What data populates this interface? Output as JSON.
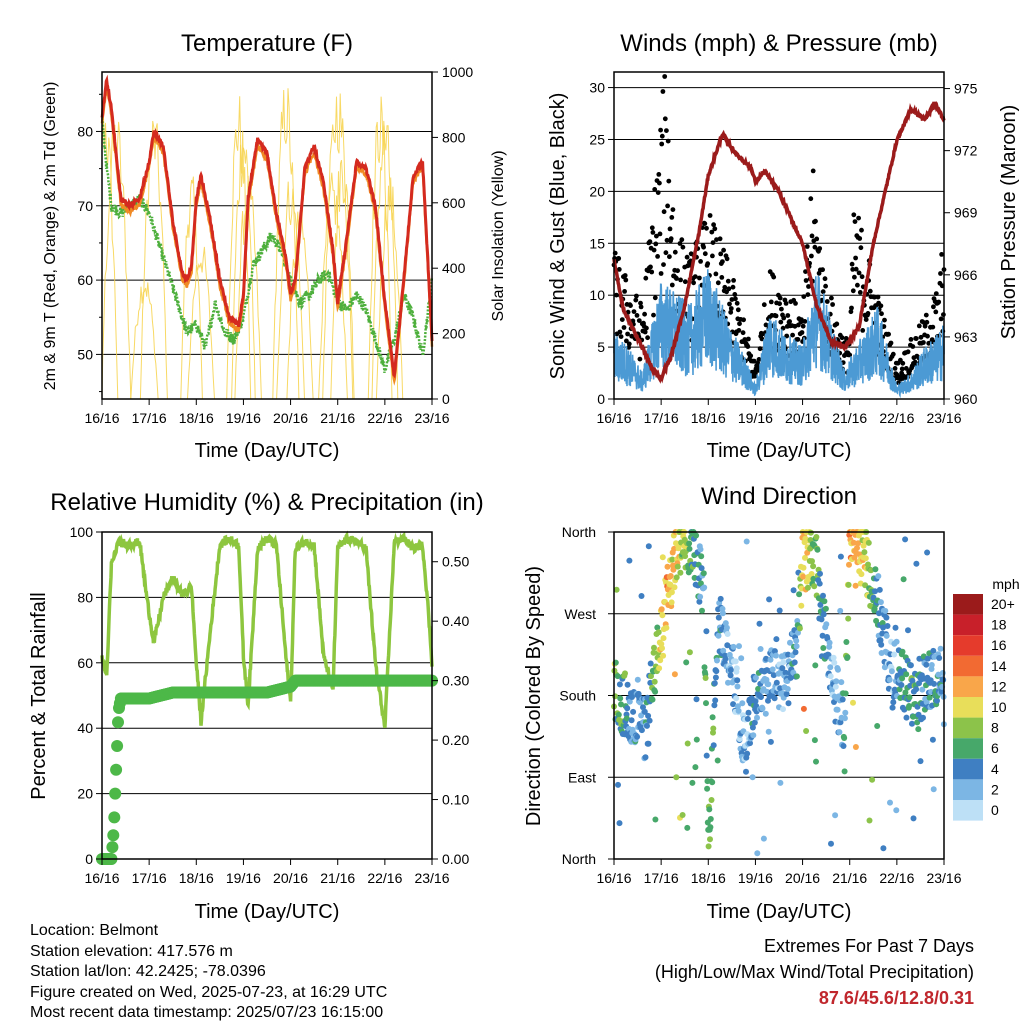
{
  "info": {
    "location": "Location: Belmont",
    "elevation": "Station elevation: 417.576 m",
    "latlon": "Station lat/lon: 42.2425; -78.0396",
    "created": "Figure created on Wed, 2025-07-23, at 16:29 UTC",
    "recent": "Most recent data timestamp: 2025/07/23 16:15:00"
  },
  "extremes": {
    "title": "Extremes For Past 7 Days",
    "subtitle": "(High/Low/Max Wind/Total Precipitation)",
    "values": "87.6/45.6/12.8/0.31"
  },
  "colors": {
    "temp_red": "#d42a1f",
    "temp_orange": "#f08a24",
    "dewpoint_green": "#4daf3c",
    "solar_yellow": "#f7d24a",
    "wind_blue": "#4c9ad4",
    "gust_black": "#000000",
    "pressure_maroon": "#9b1b1b",
    "rh_lightgreen": "#8dc63f",
    "rain_green": "#4db848"
  },
  "chart_data": [
    {
      "type": "line",
      "title": "Temperature (F)",
      "xlabel": "Time (Day/UTC)",
      "ylabel": "2m & 9m T (Red, Orange) & 2m Td (Green)",
      "y2label": "Solar Insolation (Yellow)",
      "x_ticks": [
        "16/16",
        "17/16",
        "18/16",
        "19/16",
        "20/16",
        "21/16",
        "22/16",
        "23/16"
      ],
      "ylim": [
        44,
        88
      ],
      "y_ticks": [
        "50",
        "60",
        "70",
        "80"
      ],
      "y2lim": [
        0,
        1000
      ],
      "y2_ticks": [
        "0",
        "200",
        "400",
        "600",
        "800",
        "1000"
      ],
      "grid": true,
      "series": [
        {
          "name": "2m T",
          "color": "red",
          "x": [
            0,
            0.1,
            0.2,
            0.4,
            0.6,
            0.8,
            1.0,
            1.1,
            1.3,
            1.5,
            1.7,
            1.8,
            1.9,
            2.0,
            2.1,
            2.3,
            2.5,
            2.7,
            2.9,
            3.0,
            3.1,
            3.3,
            3.5,
            3.7,
            3.9,
            4.0,
            4.1,
            4.3,
            4.5,
            4.7,
            4.9,
            5.0,
            5.2,
            5.4,
            5.6,
            5.8,
            6.0,
            6.2,
            6.4,
            6.6,
            6.8,
            6.9,
            7.0
          ],
          "values": [
            82,
            87,
            83,
            71,
            70,
            71,
            76,
            80,
            78,
            68,
            61,
            60,
            62,
            71,
            74,
            68,
            60,
            55,
            54,
            58,
            71,
            79,
            77,
            69,
            63,
            58,
            60,
            75,
            78,
            73,
            64,
            57,
            66,
            76,
            75,
            70,
            57,
            47,
            60,
            74,
            76,
            64,
            52
          ]
        },
        {
          "name": "2m Td",
          "color": "green",
          "x": [
            0,
            0.1,
            0.2,
            0.4,
            0.6,
            0.8,
            1.0,
            1.2,
            1.4,
            1.6,
            1.8,
            2.0,
            2.2,
            2.4,
            2.6,
            2.8,
            3.0,
            3.2,
            3.4,
            3.6,
            3.8,
            4.0,
            4.2,
            4.4,
            4.6,
            4.8,
            5.0,
            5.2,
            5.4,
            5.6,
            5.8,
            6.0,
            6.2,
            6.4,
            6.6,
            6.8,
            7.0
          ],
          "values": [
            82,
            75,
            70,
            69,
            70,
            71,
            69,
            65,
            61,
            57,
            53,
            54,
            51,
            57,
            53,
            52,
            55,
            62,
            64,
            66,
            64,
            60,
            57,
            58,
            60,
            61,
            57,
            56,
            58,
            56,
            52,
            48,
            52,
            58,
            55,
            50,
            60
          ]
        },
        {
          "name": "Solar Insolation",
          "color": "yellow",
          "axis": "right",
          "peaks_x": [
            0.05,
            0.3,
            0.9,
            1.1,
            1.9,
            2.1,
            2.9,
            3.0,
            3.1,
            3.9,
            4.0,
            4.2,
            4.9,
            5.0,
            5.1,
            5.9,
            6.0,
            6.1
          ],
          "peak_values": [
            950,
            900,
            400,
            900,
            700,
            500,
            950,
            880,
            700,
            1000,
            700,
            600,
            700,
            1000,
            800,
            950,
            900,
            700
          ]
        }
      ]
    },
    {
      "type": "scatter",
      "title": "Winds (mph) & Pressure (mb)",
      "xlabel": "Time (Day/UTC)",
      "ylabel": "Sonic Wind & Gust (Blue, Black)",
      "y2label": "Station Pressure (Maroon)",
      "x_ticks": [
        "16/16",
        "17/16",
        "18/16",
        "19/16",
        "20/16",
        "21/16",
        "22/16",
        "23/16"
      ],
      "ylim": [
        0,
        31.5
      ],
      "y_ticks": [
        "0",
        "5",
        "10",
        "15",
        "20",
        "25",
        "30"
      ],
      "y2lim": [
        960,
        975.8
      ],
      "y2_ticks": [
        "960",
        "963",
        "966",
        "969",
        "972",
        "975"
      ],
      "grid": true,
      "series": [
        {
          "name": "Station Pressure",
          "color": "maroon",
          "x": [
            0,
            0.1,
            0.2,
            0.4,
            0.6,
            0.8,
            1.0,
            1.2,
            1.5,
            1.8,
            2.0,
            2.3,
            2.6,
            2.9,
            3.0,
            3.2,
            3.5,
            3.8,
            4.0,
            4.3,
            4.6,
            4.9,
            5.2,
            5.5,
            5.8,
            6.0,
            6.3,
            6.6,
            6.8,
            7.0
          ],
          "values": [
            966.7,
            965.5,
            964.3,
            963.4,
            962.5,
            961.5,
            961.0,
            962.0,
            964.5,
            968.0,
            970.8,
            972.8,
            971.8,
            971.2,
            970.5,
            971.0,
            970.0,
            968.5,
            967.5,
            964.5,
            962.8,
            962.5,
            963.5,
            967.5,
            970.5,
            972.5,
            974.0,
            973.5,
            974.3,
            973.5
          ]
        },
        {
          "name": "Sonic Wind",
          "color": "blue",
          "x": [
            0,
            0.3,
            0.6,
            1.0,
            1.3,
            1.6,
            2.0,
            2.4,
            2.8,
            3.0,
            3.3,
            3.6,
            4.0,
            4.3,
            4.6,
            4.9,
            5.0,
            5.3,
            5.6,
            6.0,
            6.3,
            6.6,
            6.9,
            7.0
          ],
          "values": [
            5,
            4,
            2,
            9,
            8,
            7,
            10,
            6,
            3,
            1,
            7,
            5,
            4,
            10,
            6,
            2,
            3,
            5,
            7,
            1,
            2,
            4,
            5,
            6
          ]
        },
        {
          "name": "Gust",
          "color": "black",
          "x": [
            0,
            0.3,
            0.6,
            1.0,
            1.1,
            1.3,
            1.6,
            2.0,
            2.4,
            2.8,
            3.0,
            3.3,
            3.6,
            4.0,
            4.2,
            4.5,
            4.9,
            5.0,
            5.1,
            5.3,
            5.6,
            6.0,
            6.3,
            6.6,
            6.9,
            7.0
          ],
          "values": [
            13,
            10,
            8,
            24,
            29,
            15,
            12,
            16,
            12,
            6,
            3,
            11,
            10,
            7,
            20,
            10,
            5,
            6,
            17,
            14,
            9,
            3,
            5,
            7,
            10,
            15
          ]
        }
      ]
    },
    {
      "type": "line",
      "title": "Relative Humidity (%) & Precipitation (in)",
      "xlabel": "Time (Day/UTC)",
      "ylabel": "Percent & Total Rainfall",
      "x_ticks": [
        "16/16",
        "17/16",
        "18/16",
        "19/16",
        "20/16",
        "21/16",
        "22/16",
        "23/16"
      ],
      "ylim": [
        0,
        100
      ],
      "y_ticks": [
        "0",
        "20",
        "40",
        "60",
        "80",
        "100"
      ],
      "y2lim": [
        0,
        0.55
      ],
      "y2_ticks": [
        "0.00",
        "0.10",
        "0.20",
        "0.30",
        "0.40",
        "0.50"
      ],
      "grid": true,
      "series": [
        {
          "name": "Relative Humidity",
          "color": "lightgreen",
          "x": [
            0,
            0.1,
            0.2,
            0.35,
            0.5,
            0.8,
            0.95,
            1.1,
            1.3,
            1.5,
            1.7,
            1.9,
            2.0,
            2.1,
            2.3,
            2.5,
            2.7,
            2.9,
            3.0,
            3.1,
            3.3,
            3.5,
            3.7,
            3.9,
            4.0,
            4.1,
            4.3,
            4.5,
            4.7,
            4.9,
            5.0,
            5.2,
            5.4,
            5.6,
            5.8,
            6.0,
            6.2,
            6.4,
            6.6,
            6.8,
            6.9,
            7.0
          ],
          "values": [
            62,
            56,
            90,
            97,
            96,
            97,
            80,
            66,
            80,
            86,
            81,
            83,
            60,
            42,
            70,
            96,
            98,
            96,
            62,
            47,
            95,
            98,
            96,
            62,
            48,
            95,
            97,
            96,
            62,
            52,
            95,
            98,
            97,
            95,
            60,
            40,
            97,
            98,
            95,
            96,
            80,
            60
          ]
        },
        {
          "name": "Total Rainfall",
          "color": "green",
          "axis": "right",
          "x": [
            0,
            0.2,
            0.25,
            0.3,
            0.35,
            0.4,
            0.5,
            1.0,
            1.5,
            2.0,
            2.5,
            3.0,
            3.5,
            4.0,
            4.1,
            4.5,
            5.0,
            5.5,
            6.0,
            6.5,
            7.0
          ],
          "values": [
            0,
            0,
            0.05,
            0.15,
            0.25,
            0.27,
            0.27,
            0.27,
            0.28,
            0.28,
            0.28,
            0.28,
            0.28,
            0.29,
            0.3,
            0.3,
            0.3,
            0.3,
            0.3,
            0.3,
            0.3
          ]
        }
      ]
    },
    {
      "type": "scatter",
      "title": "Wind Direction",
      "xlabel": "Time (Day/UTC)",
      "ylabel": "Direction (Colored By Speed)",
      "x_ticks": [
        "16/16",
        "17/16",
        "18/16",
        "19/16",
        "20/16",
        "21/16",
        "22/16",
        "23/16"
      ],
      "y_ticks": [
        "North",
        "East",
        "South",
        "West",
        "North"
      ],
      "ylim": [
        0,
        360
      ],
      "legend": {
        "title": "mph",
        "labels": [
          "20+",
          "18",
          "16",
          "14",
          "12",
          "10",
          "8",
          "6",
          "4",
          "2",
          "0"
        ],
        "colors": [
          "#9b1b1b",
          "#c8202a",
          "#e53b2c",
          "#f26a32",
          "#f9a64a",
          "#e8de5a",
          "#8cc34a",
          "#47a86a",
          "#3f7fc2",
          "#7cb6e4",
          "#bde0f6"
        ],
        "placement": "right"
      },
      "grid": true,
      "series": [
        {
          "name": "Wind Direction",
          "x": [
            0,
            0.1,
            0.2,
            0.3,
            0.5,
            0.7,
            0.8,
            1.0,
            1.1,
            1.3,
            1.5,
            1.7,
            1.8,
            1.9,
            2.0,
            2.2,
            2.5,
            2.8,
            3.0,
            3.3,
            3.6,
            3.9,
            4.0,
            4.3,
            4.6,
            4.9,
            5.0,
            5.3,
            5.6,
            5.9,
            6.0,
            6.3,
            6.6,
            6.9,
            7.0
          ],
          "values": [
            190,
            180,
            170,
            170,
            150,
            140,
            200,
            240,
            280,
            330,
            355,
            340,
            320,
            300,
            5,
            270,
            210,
            120,
            180,
            200,
            190,
            230,
            340,
            320,
            200,
            150,
            355,
            340,
            280,
            200,
            210,
            180,
            190,
            200,
            180
          ],
          "speeds": [
            8,
            6,
            6,
            4,
            3,
            4,
            6,
            10,
            12,
            10,
            8,
            6,
            4,
            4,
            8,
            4,
            2,
            2,
            4,
            3,
            2,
            4,
            12,
            6,
            2,
            4,
            12,
            10,
            4,
            2,
            4,
            6,
            4,
            4,
            3
          ]
        }
      ]
    }
  ]
}
